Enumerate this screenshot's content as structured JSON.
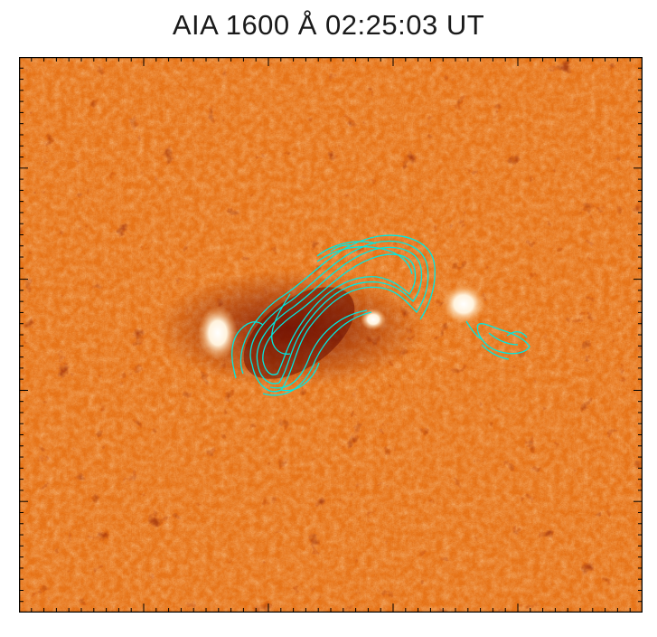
{
  "title": "AIA 1600 Å 02:25:03 UT",
  "image": {
    "kind": "solar-image",
    "colormap": [
      "#6e0a00",
      "#b52f00",
      "#e8730f",
      "#f8a64e",
      "#fde6c2",
      "#ffffff"
    ],
    "background_color": "#ec7a1c",
    "dark_network_color": "#8a1a05",
    "contour_color": "#00e8e0",
    "axis_color": "#000000",
    "features": {
      "bright_kernels": 3,
      "contour_groups": 2
    }
  }
}
